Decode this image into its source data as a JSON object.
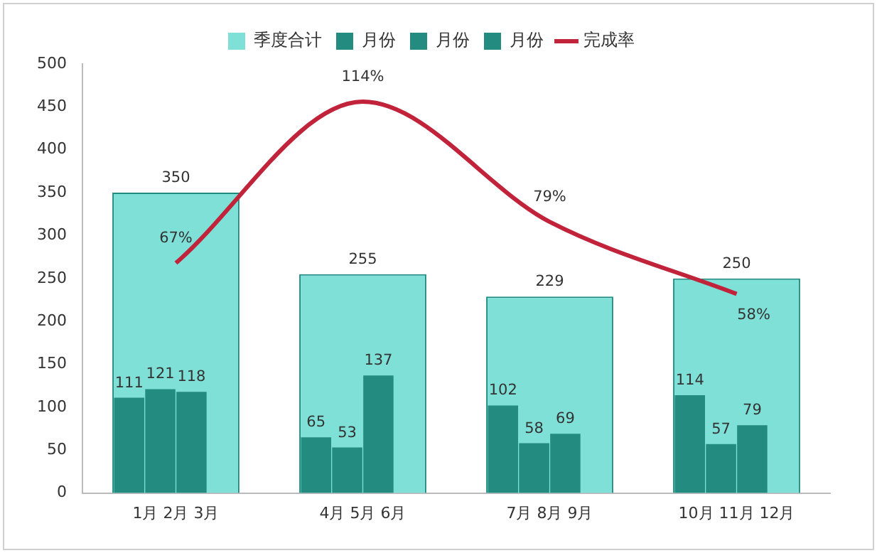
{
  "chart_data": {
    "type": "bar",
    "categories": [
      "1月 2月 3月",
      "4月 5月 6月",
      "7月 8月 9月",
      "10月 11月 12月"
    ],
    "series": [
      {
        "name": "季度合计",
        "color": "#7fe0d7",
        "values": [
          350,
          255,
          229,
          250
        ],
        "value_labels": [
          "350",
          "255",
          "229",
          "250"
        ]
      },
      {
        "name": "月份",
        "color": "#238b80",
        "values": [
          111,
          65,
          102,
          114
        ],
        "value_labels": [
          "111",
          "65",
          "102",
          "114"
        ]
      },
      {
        "name": "月份",
        "color": "#238b80",
        "values": [
          121,
          53,
          58,
          57
        ],
        "value_labels": [
          "121",
          "53",
          "58",
          "57"
        ]
      },
      {
        "name": "月份",
        "color": "#238b80",
        "values": [
          118,
          137,
          69,
          79
        ],
        "value_labels": [
          "118",
          "137",
          "69",
          "79"
        ]
      },
      {
        "name": "完成率",
        "type": "line",
        "axis": "y2",
        "color": "#c0233a",
        "values": [
          67,
          114,
          79,
          58
        ],
        "value_labels": [
          "67%",
          "114%",
          "79%",
          "58%"
        ]
      }
    ],
    "ylim": [
      0,
      500
    ],
    "yticks": [
      0,
      50,
      100,
      150,
      200,
      250,
      300,
      350,
      400,
      450,
      500
    ],
    "y2lim": [
      0,
      125
    ],
    "legend": "top",
    "grid": false,
    "marker": "none",
    "line_style": "solid"
  }
}
